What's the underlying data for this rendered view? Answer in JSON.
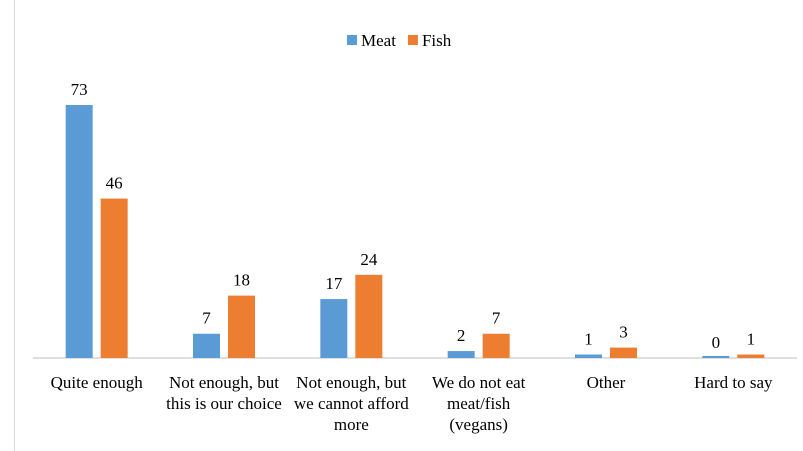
{
  "chart_data": {
    "type": "bar",
    "categories": [
      "Quite enough",
      "Not enough, but this is our choice",
      "Not enough, but we cannot afford more",
      "We do not eat meat/fish (vegans)",
      "Other",
      "Hard to say"
    ],
    "series": [
      {
        "name": "Meat",
        "color": "#5b9bd5",
        "values": [
          73,
          7,
          17,
          2,
          1,
          0
        ]
      },
      {
        "name": "Fish",
        "color": "#ed7d31",
        "values": [
          46,
          18,
          24,
          7,
          3,
          1
        ]
      }
    ],
    "legend": "top"
  }
}
